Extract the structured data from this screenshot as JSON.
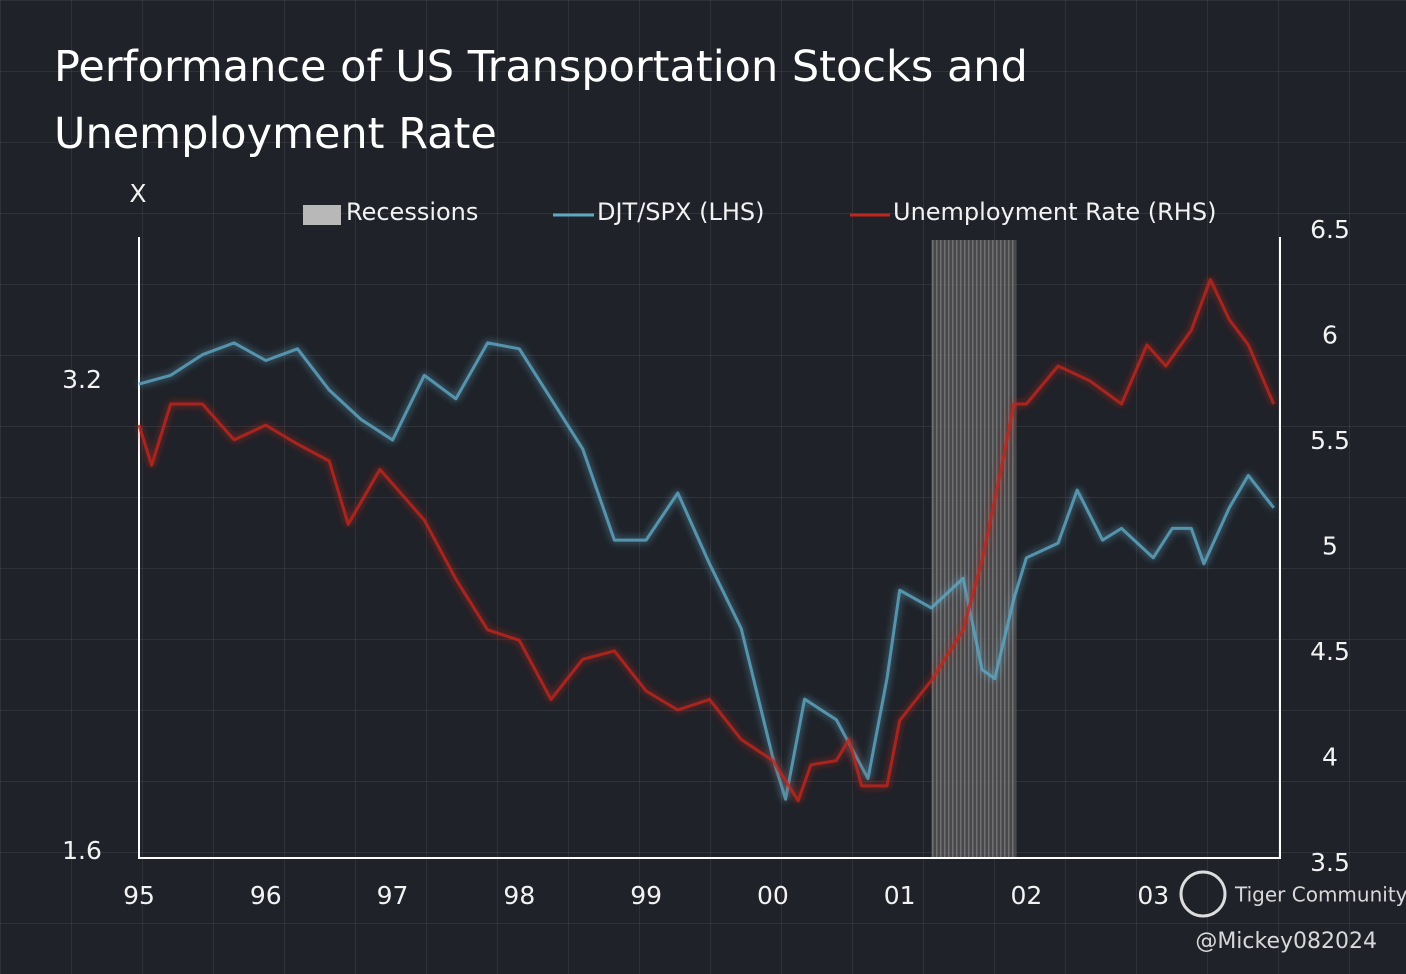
{
  "chart_data": {
    "type": "line",
    "title": "Performance of US Transportation Stocks and Unemployment Rate",
    "ylabel": "X",
    "recession": {
      "name": "Recessions",
      "color": "#b8b8b8",
      "start": 2001.25,
      "end": 2001.92
    },
    "series": [
      {
        "name": "DJT/SPX (LHS)",
        "color": "#5fa8c4",
        "axis": "y",
        "x": [
          1995.0,
          1995.25,
          1995.5,
          1995.75,
          1996.0,
          1996.25,
          1996.5,
          1996.75,
          1997.0,
          1997.25,
          1997.5,
          1997.75,
          1998.0,
          1998.25,
          1998.5,
          1998.75,
          1999.0,
          1999.25,
          1999.5,
          1999.75,
          2000.0,
          2000.1,
          2000.25,
          2000.5,
          2000.75,
          2000.9,
          2001.0,
          2001.25,
          2001.5,
          2001.65,
          2001.75,
          2001.9,
          2002.0,
          2002.25,
          2002.4,
          2002.6,
          2002.75,
          2003.0,
          2003.15,
          2003.3,
          2003.4,
          2003.6,
          2003.75,
          2003.95
        ],
        "values": [
          3.19,
          3.22,
          3.29,
          3.33,
          3.27,
          3.31,
          3.17,
          3.07,
          3.0,
          3.22,
          3.14,
          3.33,
          3.31,
          3.14,
          2.97,
          2.66,
          2.66,
          2.82,
          2.58,
          2.36,
          1.92,
          1.78,
          2.12,
          2.05,
          1.85,
          2.19,
          2.49,
          2.43,
          2.53,
          2.22,
          2.19,
          2.46,
          2.6,
          2.65,
          2.83,
          2.66,
          2.7,
          2.6,
          2.7,
          2.7,
          2.58,
          2.77,
          2.88,
          2.77
        ]
      },
      {
        "name": "Unemployment Rate (RHS)",
        "color": "#c0261c",
        "axis": "y2",
        "x": [
          1995.0,
          1995.1,
          1995.25,
          1995.5,
          1995.75,
          1996.0,
          1996.25,
          1996.5,
          1996.65,
          1996.9,
          1997.25,
          1997.5,
          1997.75,
          1998.0,
          1998.25,
          1998.5,
          1998.75,
          1999.0,
          1999.25,
          1999.5,
          1999.75,
          2000.0,
          2000.2,
          2000.3,
          2000.5,
          2000.6,
          2000.7,
          2000.9,
          2001.0,
          2001.25,
          2001.5,
          2001.65,
          2001.8,
          2001.9,
          2002.0,
          2002.25,
          2002.5,
          2002.75,
          2002.95,
          2003.1,
          2003.3,
          2003.45,
          2003.6,
          2003.75,
          2003.95
        ],
        "values": [
          5.58,
          5.39,
          5.68,
          5.68,
          5.51,
          5.58,
          5.49,
          5.41,
          5.11,
          5.37,
          5.13,
          4.85,
          4.61,
          4.56,
          4.28,
          4.47,
          4.51,
          4.32,
          4.23,
          4.28,
          4.09,
          3.99,
          3.8,
          3.97,
          3.99,
          4.09,
          3.87,
          3.87,
          4.18,
          4.37,
          4.61,
          4.94,
          5.37,
          5.68,
          5.68,
          5.86,
          5.79,
          5.68,
          5.96,
          5.86,
          6.03,
          6.27,
          6.08,
          5.96,
          5.68
        ]
      }
    ],
    "xlim": [
      1995,
      2004
    ],
    "xticks": [
      {
        "value": 1995,
        "label": "95"
      },
      {
        "value": 1996,
        "label": "96"
      },
      {
        "value": 1997,
        "label": "97"
      },
      {
        "value": 1998,
        "label": "98"
      },
      {
        "value": 1999,
        "label": "99"
      },
      {
        "value": 2000,
        "label": "00"
      },
      {
        "value": 2001,
        "label": "01"
      },
      {
        "value": 2002,
        "label": "02"
      },
      {
        "value": 2003,
        "label": "03"
      }
    ],
    "ylim": [
      1.56,
      3.71
    ],
    "yticks": [
      1.6,
      3.2
    ],
    "y2lim": [
      3.5,
      6.5
    ],
    "y2ticks": [
      3.5,
      4,
      4.5,
      5,
      5.5,
      6,
      6.5
    ],
    "watermark": [
      "Tiger Community",
      "@Mickey082024"
    ]
  }
}
